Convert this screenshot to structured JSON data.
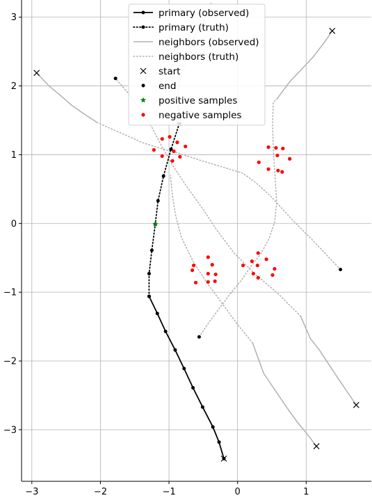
{
  "chart_data": {
    "type": "line",
    "title": "",
    "xlabel": "",
    "ylabel": "",
    "xlim": [
      -3.15,
      1.95
    ],
    "ylim": [
      -3.75,
      3.25
    ],
    "grid": true,
    "legend_placement": "top-center",
    "xticks": [
      -3,
      -2,
      -1,
      0,
      1
    ],
    "yticks": [
      -3,
      -2,
      -1,
      0,
      1,
      2,
      3
    ],
    "xtick_labels": [
      "−3",
      "−2",
      "−1",
      "0",
      "1"
    ],
    "ytick_labels": [
      "−3",
      "−2",
      "−1",
      "0",
      "1",
      "2",
      "3"
    ],
    "legend": [
      {
        "key": "primary_obs",
        "label": "primary (observed)"
      },
      {
        "key": "primary_truth",
        "label": "primary (truth)"
      },
      {
        "key": "neighbors_obs",
        "label": "neighbors (observed)"
      },
      {
        "key": "neighbors_truth",
        "label": "neighbors (truth)"
      },
      {
        "key": "start",
        "label": "start"
      },
      {
        "key": "end",
        "label": "end"
      },
      {
        "key": "positive",
        "label": "positive samples"
      },
      {
        "key": "negative",
        "label": "negative samples"
      }
    ],
    "colors": {
      "primary": "#000000",
      "neighbors": "#b0b0b0",
      "positive": "#008000",
      "negative": "#ff0000",
      "grid": "#b0b0b0"
    },
    "primary_observed": [
      [
        -0.2,
        -3.42
      ],
      [
        -0.27,
        -3.18
      ],
      [
        -0.36,
        -2.96
      ],
      [
        -0.51,
        -2.67
      ],
      [
        -0.65,
        -2.39
      ],
      [
        -0.78,
        -2.11
      ],
      [
        -0.91,
        -1.84
      ],
      [
        -1.05,
        -1.57
      ],
      [
        -1.17,
        -1.31
      ],
      [
        -1.29,
        -1.06
      ]
    ],
    "primary_truth": [
      [
        -1.29,
        -1.06
      ],
      [
        -1.29,
        -0.73
      ],
      [
        -1.25,
        -0.39
      ],
      [
        -1.2,
        -0.01
      ],
      [
        -1.16,
        0.33
      ],
      [
        -1.08,
        0.69
      ],
      [
        -0.97,
        1.08
      ],
      [
        -0.85,
        1.45
      ]
    ],
    "neighbors_observed": [
      [
        [
          1.38,
          2.8
        ],
        [
          1.27,
          2.64
        ],
        [
          1.1,
          2.42
        ],
        [
          0.95,
          2.26
        ],
        [
          0.76,
          2.06
        ],
        [
          0.58,
          1.82
        ]
      ],
      [
        [
          -2.93,
          2.19
        ],
        [
          -2.75,
          2.0
        ],
        [
          -2.58,
          1.86
        ],
        [
          -2.42,
          1.72
        ],
        [
          -2.25,
          1.6
        ],
        [
          -2.05,
          1.47
        ]
      ],
      [
        [
          1.73,
          -2.64
        ],
        [
          1.6,
          -2.45
        ],
        [
          1.47,
          -2.26
        ],
        [
          1.33,
          -2.05
        ],
        [
          1.2,
          -1.85
        ],
        [
          1.06,
          -1.67
        ],
        [
          0.92,
          -1.35
        ]
      ],
      [
        [
          1.15,
          -3.24
        ],
        [
          1.02,
          -3.07
        ],
        [
          0.88,
          -2.9
        ],
        [
          0.72,
          -2.68
        ],
        [
          0.55,
          -2.43
        ],
        [
          0.38,
          -2.18
        ],
        [
          0.22,
          -1.74
        ]
      ],
      [
        [
          -0.82,
          1.44
        ],
        [
          -0.85,
          1.6
        ],
        [
          -0.89,
          1.78
        ]
      ]
    ],
    "neighbors_truth": [
      [
        [
          0.58,
          1.82
        ],
        [
          0.52,
          1.76
        ],
        [
          0.51,
          1.45
        ],
        [
          0.52,
          1.1
        ],
        [
          0.55,
          0.62
        ],
        [
          0.57,
          0.3
        ],
        [
          0.54,
          0.02
        ],
        [
          0.46,
          -0.22
        ],
        [
          0.34,
          -0.44
        ],
        [
          0.21,
          -0.6
        ],
        [
          0.06,
          -0.82
        ],
        [
          -0.12,
          -1.04
        ],
        [
          -0.3,
          -1.28
        ],
        [
          -0.46,
          -1.5
        ],
        [
          -0.56,
          -1.65
        ]
      ],
      [
        [
          -2.05,
          1.47
        ],
        [
          -1.85,
          1.38
        ],
        [
          -1.62,
          1.28
        ],
        [
          -1.4,
          1.18
        ],
        [
          -1.15,
          1.1
        ],
        [
          -0.85,
          1.02
        ],
        [
          -0.55,
          0.92
        ],
        [
          -0.25,
          0.83
        ],
        [
          0.08,
          0.73
        ],
        [
          0.28,
          0.58
        ],
        [
          0.48,
          0.4
        ],
        [
          0.8,
          0.05
        ],
        [
          1.1,
          -0.25
        ],
        [
          1.5,
          -0.67
        ]
      ],
      [
        [
          0.92,
          -1.35
        ],
        [
          0.6,
          -1.03
        ],
        [
          0.25,
          -0.73
        ],
        [
          -0.05,
          -0.43
        ],
        [
          -0.3,
          -0.1
        ],
        [
          -0.5,
          0.2
        ],
        [
          -0.75,
          0.55
        ],
        [
          -0.95,
          0.85
        ],
        [
          -1.12,
          1.15
        ],
        [
          -1.25,
          1.4
        ],
        [
          -1.4,
          1.65
        ],
        [
          -1.6,
          1.9
        ],
        [
          -1.78,
          2.11
        ]
      ],
      [
        [
          0.22,
          -1.74
        ],
        [
          0.0,
          -1.47
        ],
        [
          -0.22,
          -1.17
        ],
        [
          -0.45,
          -0.86
        ],
        [
          -0.65,
          -0.55
        ],
        [
          -0.82,
          -0.2
        ],
        [
          -0.9,
          0.1
        ],
        [
          -0.95,
          0.4
        ],
        [
          -0.98,
          0.7
        ]
      ],
      [
        [
          -0.89,
          1.78
        ],
        [
          -0.85,
          2.05
        ],
        [
          -0.78,
          2.3
        ],
        [
          -0.7,
          2.55
        ],
        [
          -0.58,
          2.8
        ],
        [
          -0.45,
          3.05
        ],
        [
          -0.38,
          3.22
        ]
      ]
    ],
    "start_points": [
      [
        -0.2,
        -3.42
      ],
      [
        1.38,
        2.8
      ],
      [
        -2.93,
        2.19
      ],
      [
        1.73,
        -2.64
      ],
      [
        1.15,
        -3.24
      ]
    ],
    "end_points": [
      [
        -0.85,
        1.45
      ],
      [
        -0.56,
        -1.65
      ],
      [
        1.5,
        -0.67
      ],
      [
        -1.78,
        2.11
      ]
    ],
    "positive_samples": [
      [
        -1.2,
        -0.01
      ]
    ],
    "negative_samples": [
      [
        -0.99,
        1.26
      ],
      [
        -1.1,
        1.23
      ],
      [
        -0.88,
        1.18
      ],
      [
        -0.76,
        1.12
      ],
      [
        -1.22,
        1.07
      ],
      [
        -0.93,
        1.05
      ],
      [
        -1.1,
        0.98
      ],
      [
        -0.84,
        0.97
      ],
      [
        -0.95,
        0.91
      ],
      [
        0.45,
        1.11
      ],
      [
        0.56,
        1.1
      ],
      [
        0.66,
        1.09
      ],
      [
        0.58,
        0.99
      ],
      [
        0.76,
        0.94
      ],
      [
        0.31,
        0.89
      ],
      [
        0.45,
        0.79
      ],
      [
        0.59,
        0.77
      ],
      [
        0.65,
        0.75
      ],
      [
        -0.43,
        -0.49
      ],
      [
        -0.37,
        -0.6
      ],
      [
        -0.64,
        -0.61
      ],
      [
        -0.66,
        -0.68
      ],
      [
        -0.43,
        -0.73
      ],
      [
        -0.32,
        -0.74
      ],
      [
        -0.43,
        -0.85
      ],
      [
        -0.33,
        -0.84
      ],
      [
        -0.61,
        -0.86
      ],
      [
        0.3,
        -0.43
      ],
      [
        0.42,
        -0.52
      ],
      [
        0.21,
        -0.55
      ],
      [
        0.08,
        -0.61
      ],
      [
        0.29,
        -0.61
      ],
      [
        0.54,
        -0.66
      ],
      [
        0.23,
        -0.73
      ],
      [
        0.51,
        -0.75
      ],
      [
        0.3,
        -0.79
      ]
    ]
  }
}
